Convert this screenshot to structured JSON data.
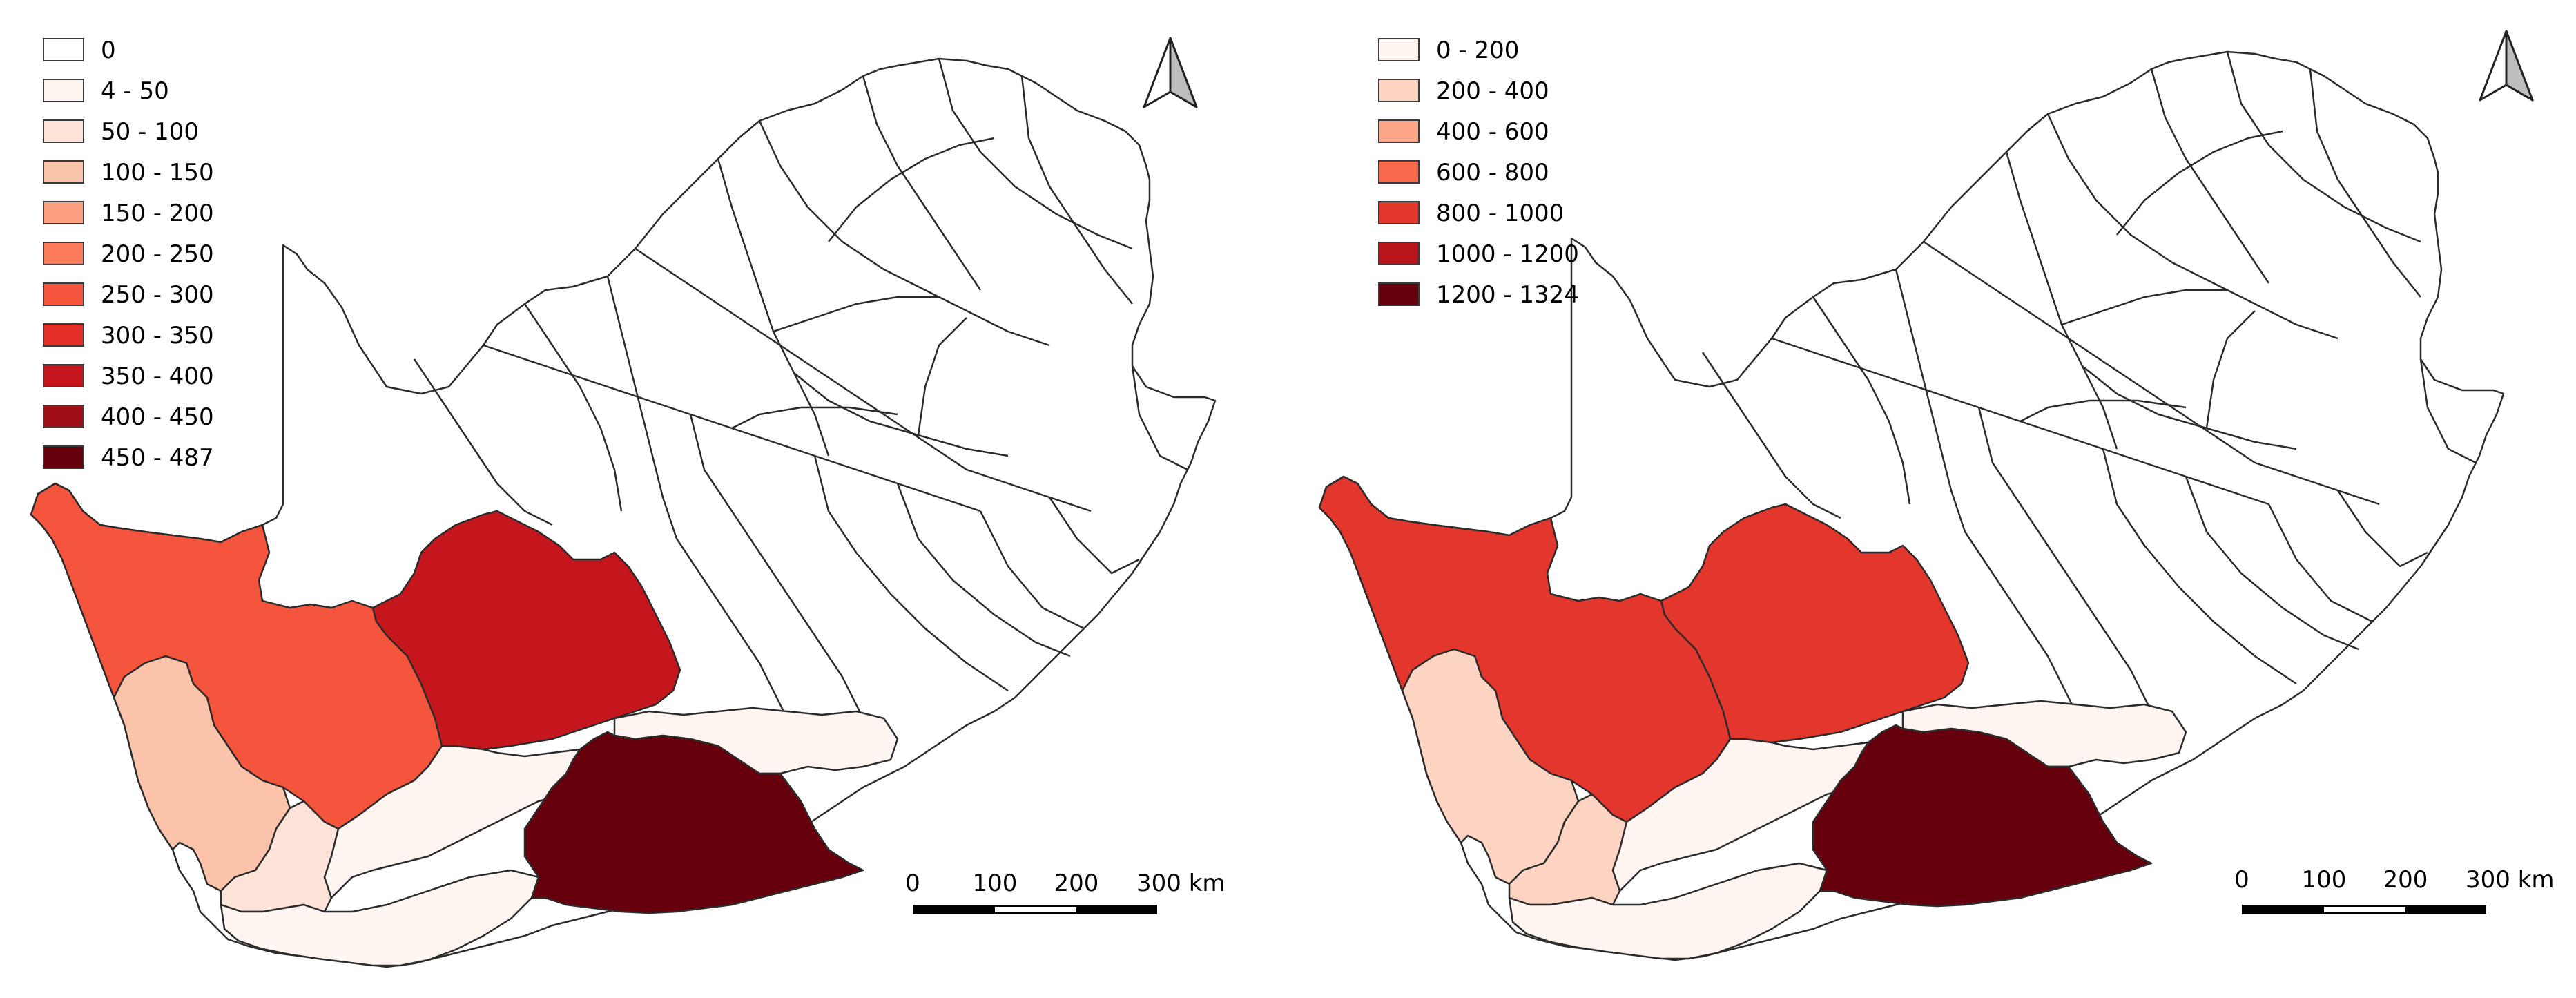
{
  "maps": [
    {
      "legend": [
        {
          "label": "0",
          "color": "#ffffff"
        },
        {
          "label": "4 - 50",
          "color": "#fff5f0"
        },
        {
          "label": "50 - 100",
          "color": "#fee4d8"
        },
        {
          "label": "100 - 150",
          "color": "#fcc3ab"
        },
        {
          "label": "150 - 200",
          "color": "#fc9f81"
        },
        {
          "label": "200 - 250",
          "color": "#fb7b5b"
        },
        {
          "label": "250 - 300",
          "color": "#f5553d"
        },
        {
          "label": "300 - 350",
          "color": "#e32f27"
        },
        {
          "label": "350 - 400",
          "color": "#c4161c"
        },
        {
          "label": "400 - 450",
          "color": "#9f0e14"
        },
        {
          "label": "450 - 487",
          "color": "#67000d"
        }
      ],
      "scale_bar": {
        "labels": [
          "0",
          "100",
          "200",
          "300 km"
        ]
      }
    },
    {
      "legend": [
        {
          "label": "0 - 200",
          "color": "#fff5f0"
        },
        {
          "label": "200 - 400",
          "color": "#fdd3c1"
        },
        {
          "label": "400 - 600",
          "color": "#fca486"
        },
        {
          "label": "600 - 800",
          "color": "#f9694c"
        },
        {
          "label": "800 - 1000",
          "color": "#e3362c"
        },
        {
          "label": "1000 - 1200",
          "color": "#b81419"
        },
        {
          "label": "1200 - 1324",
          "color": "#67000d"
        }
      ],
      "scale_bar": {
        "labels": [
          "0",
          "100",
          "200",
          "300 km"
        ]
      }
    }
  ],
  "north_arrow_icon": "north-arrow-icon"
}
